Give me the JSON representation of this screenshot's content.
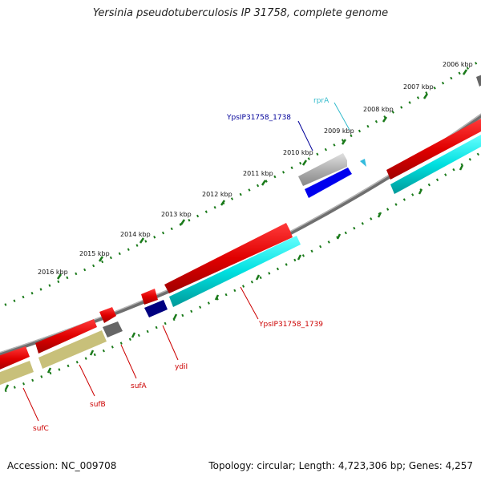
{
  "title": "Yersinia pseudotuberculosis IP 31758, complete genome",
  "footer": {
    "accession": "Accession: NC_009708",
    "topology": "Topology: circular; Length: 4,723,306 bp; Genes: 4,257"
  },
  "colors": {
    "backbone": "#7a7a7a",
    "ticks": "#1a7a1a",
    "cds_forward": "#ee0000",
    "cds_reverse": "#00e5e5",
    "gene_gray": "#a8a8a8",
    "gene_blue": "#0000ee",
    "gene_navy": "#000080",
    "gene_olive": "#c8c07a",
    "gene_darkgray": "#666666",
    "label_red": "#cc0000",
    "label_navy": "#000099",
    "label_cyan": "#33bbcc"
  },
  "scale": {
    "ticks": [
      {
        "label": "2006 kbp"
      },
      {
        "label": "2007 kbp"
      },
      {
        "label": "2008 kbp"
      },
      {
        "label": "2009 kbp"
      },
      {
        "label": "2010 kbp"
      },
      {
        "label": "2011 kbp"
      },
      {
        "label": "2012 kbp"
      },
      {
        "label": "2013 kbp"
      },
      {
        "label": "2014 kbp"
      },
      {
        "label": "2015 kbp"
      },
      {
        "label": "2016 kbp"
      }
    ]
  },
  "genes": [
    {
      "label": "rprA",
      "color_key": "label_cyan"
    },
    {
      "label": "YpsIP31758_1738",
      "color_key": "label_navy"
    },
    {
      "label": "YpsIP31758_1739",
      "color_key": "label_red"
    },
    {
      "label": "ydiI",
      "color_key": "label_red"
    },
    {
      "label": "sufA",
      "color_key": "label_red"
    },
    {
      "label": "sufB",
      "color_key": "label_red"
    },
    {
      "label": "sufC",
      "color_key": "label_red"
    }
  ]
}
